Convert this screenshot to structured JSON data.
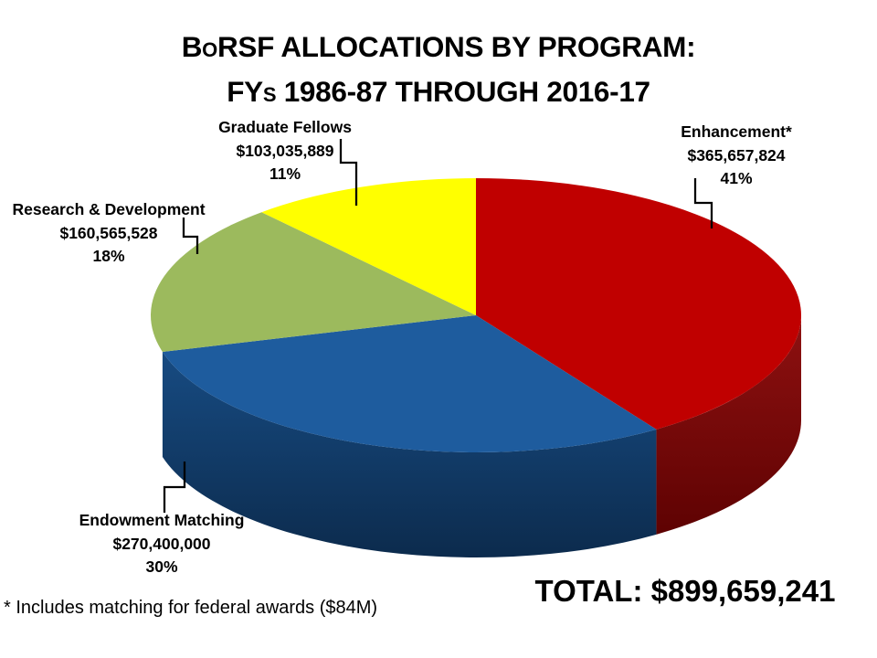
{
  "title": {
    "line1": "BoRSF ALLOCATIONS BY PROGRAM:",
    "line2": "FYs 1986-87 THROUGH 2016-17"
  },
  "total_label": "TOTAL: $899,659,241",
  "footnote": "* Includes matching for federal awards ($84M)",
  "chart_data": {
    "type": "pie",
    "style": "3d",
    "title": "BoRSF ALLOCATIONS BY PROGRAM: FYs 1986-87 THROUGH 2016-17",
    "start_angle_deg": 0,
    "direction": "clockwise",
    "legend_position": "none",
    "total_value": 899659241,
    "total_text": "$899,659,241",
    "background_color": "#FFFFFF",
    "text_color": "#000000",
    "leader_line_color": "#000000",
    "slices": [
      {
        "id": "enhancement",
        "label": "Enhancement*",
        "amount": "$365,657,824",
        "value": 365657824,
        "percent": "41%",
        "color": "#C00000",
        "wall_top": "#8F1111",
        "wall_bottom": "#5E0202"
      },
      {
        "id": "endowment-matching",
        "label": "Endowment Matching",
        "amount": "$270,400,000",
        "value": 270400000,
        "percent": "30%",
        "color": "#1E5C9E",
        "wall_top": "#174B82",
        "wall_bottom": "#0C2B4D"
      },
      {
        "id": "research-development",
        "label": "Research & Development",
        "amount": "$160,565,528",
        "value": 160565528,
        "percent": "18%",
        "color": "#9CBA5D",
        "wall_top": "#6B8532",
        "wall_bottom": "#4E6420"
      },
      {
        "id": "graduate-fellows",
        "label": "Graduate Fellows",
        "amount": "$103,035,889",
        "value": 103035889,
        "percent": "11%",
        "color": "#FFFF00",
        "wall_top": "#B8B800",
        "wall_bottom": "#8A8A00"
      }
    ]
  }
}
